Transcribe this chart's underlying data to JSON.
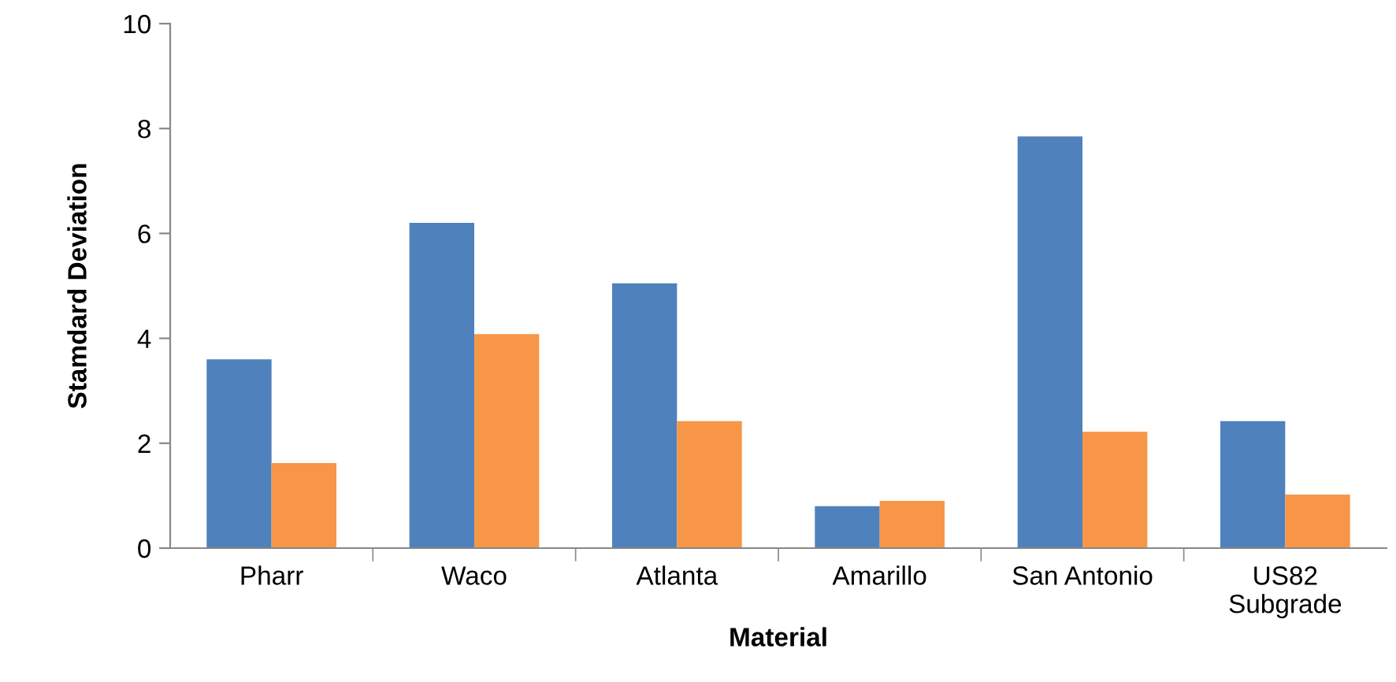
{
  "chart_data": {
    "type": "bar",
    "xlabel": "Material",
    "ylabel": "Stamdard Deviation",
    "categories": [
      "Pharr",
      "Waco",
      "Atlanta",
      "Amarillo",
      "San Antonio",
      "US82\nSubgrade"
    ],
    "series": [
      {
        "color": "#4f81bd",
        "values": [
          3.6,
          6.2,
          5.05,
          0.8,
          7.85,
          2.42
        ]
      },
      {
        "color": "#f79646",
        "values": [
          1.62,
          4.08,
          2.42,
          0.9,
          2.22,
          1.02
        ]
      }
    ],
    "ylim": [
      0,
      10
    ],
    "yticks": [
      0,
      2,
      4,
      6,
      8,
      10
    ],
    "grid": false,
    "legend": false
  }
}
